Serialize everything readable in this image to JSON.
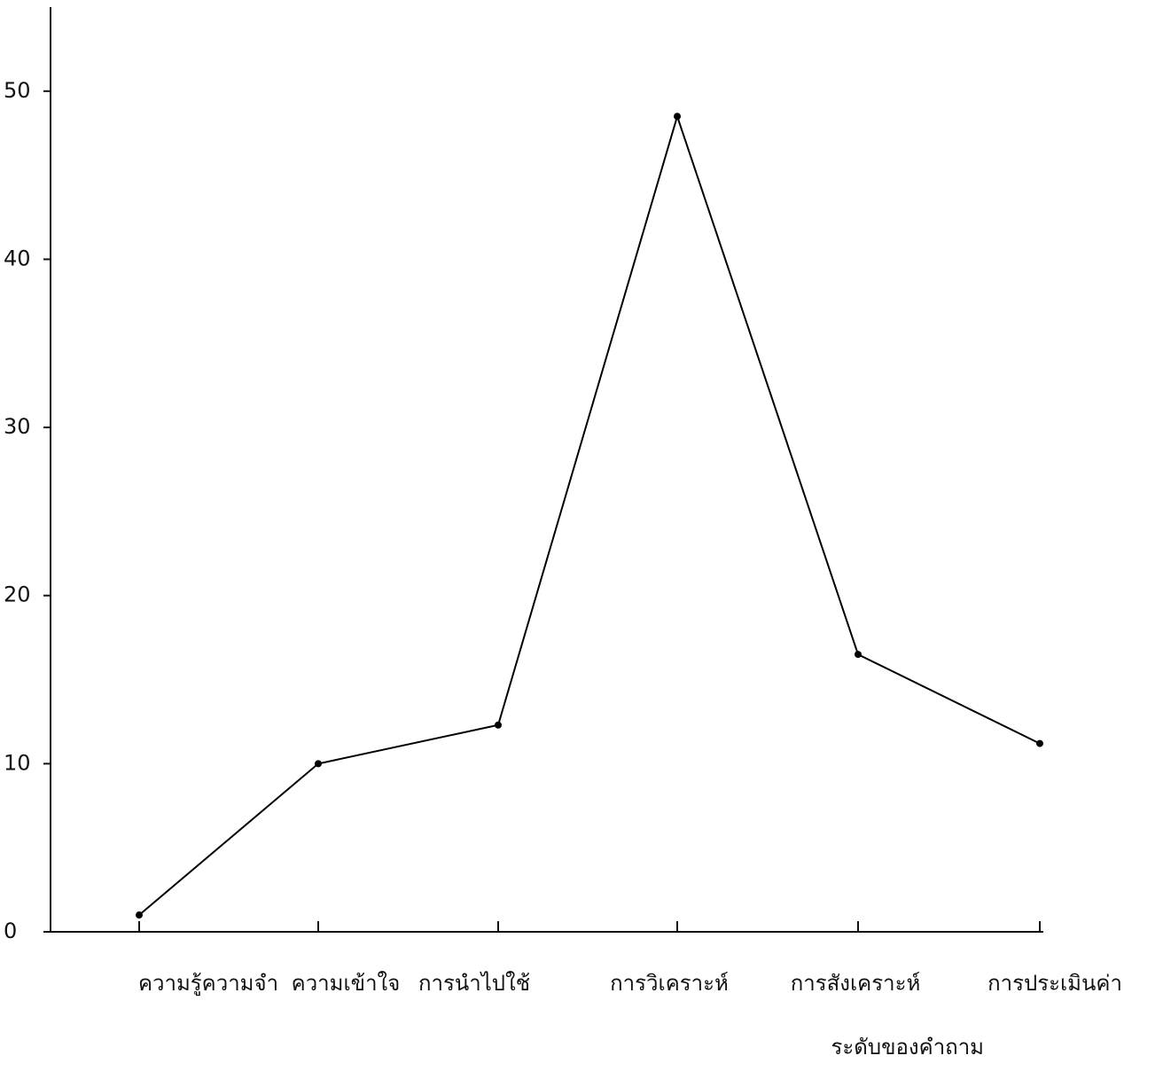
{
  "chart_data": {
    "type": "line",
    "categories": [
      "ความรู้ความจำ",
      "ความเข้าใจ",
      "การนำไปใช้",
      "การวิเคราะห์",
      "การสังเคราะห์",
      "การประเมินค่า"
    ],
    "series": [
      {
        "values": [
          1,
          10,
          12.3,
          48.5,
          16.5,
          11.2
        ],
        "color": "#000000"
      }
    ],
    "x_label": "ระดับของคำถาม",
    "ylim": [
      0,
      55
    ],
    "yticks": [
      0,
      10,
      20,
      30,
      40,
      50
    ]
  }
}
